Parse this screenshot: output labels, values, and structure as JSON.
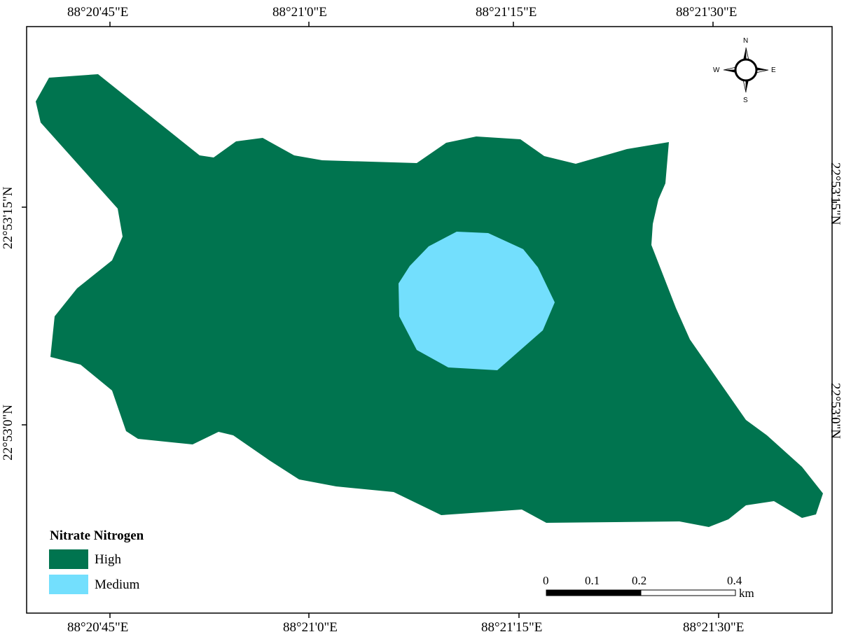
{
  "map": {
    "top_longitude_labels": [
      "88°20'45\"E",
      "88°21'0\"E",
      "88°21'15\"E",
      "88°21'30\"E"
    ],
    "bottom_longitude_labels": [
      "88°20'45\"E",
      "88°21'0\"E",
      "88°21'15\"E",
      "88°21'30\"E"
    ],
    "left_latitude_labels": [
      "22°53'15\"N",
      "22°53'0\"N"
    ],
    "right_latitude_labels": [
      "22°53'15\"N",
      "22°53'0\"N"
    ]
  },
  "legend": {
    "title": "Nitrate Nitrogen",
    "items": [
      {
        "label": "High",
        "color": "#00744f"
      },
      {
        "label": "Medium",
        "color": "#73dffd"
      }
    ]
  },
  "scale_bar": {
    "ticks": [
      "0",
      "0.1",
      "0.2",
      "0.4"
    ],
    "unit": "km"
  },
  "compass": {
    "n": "N",
    "s": "S",
    "e": "E",
    "w": "W"
  }
}
